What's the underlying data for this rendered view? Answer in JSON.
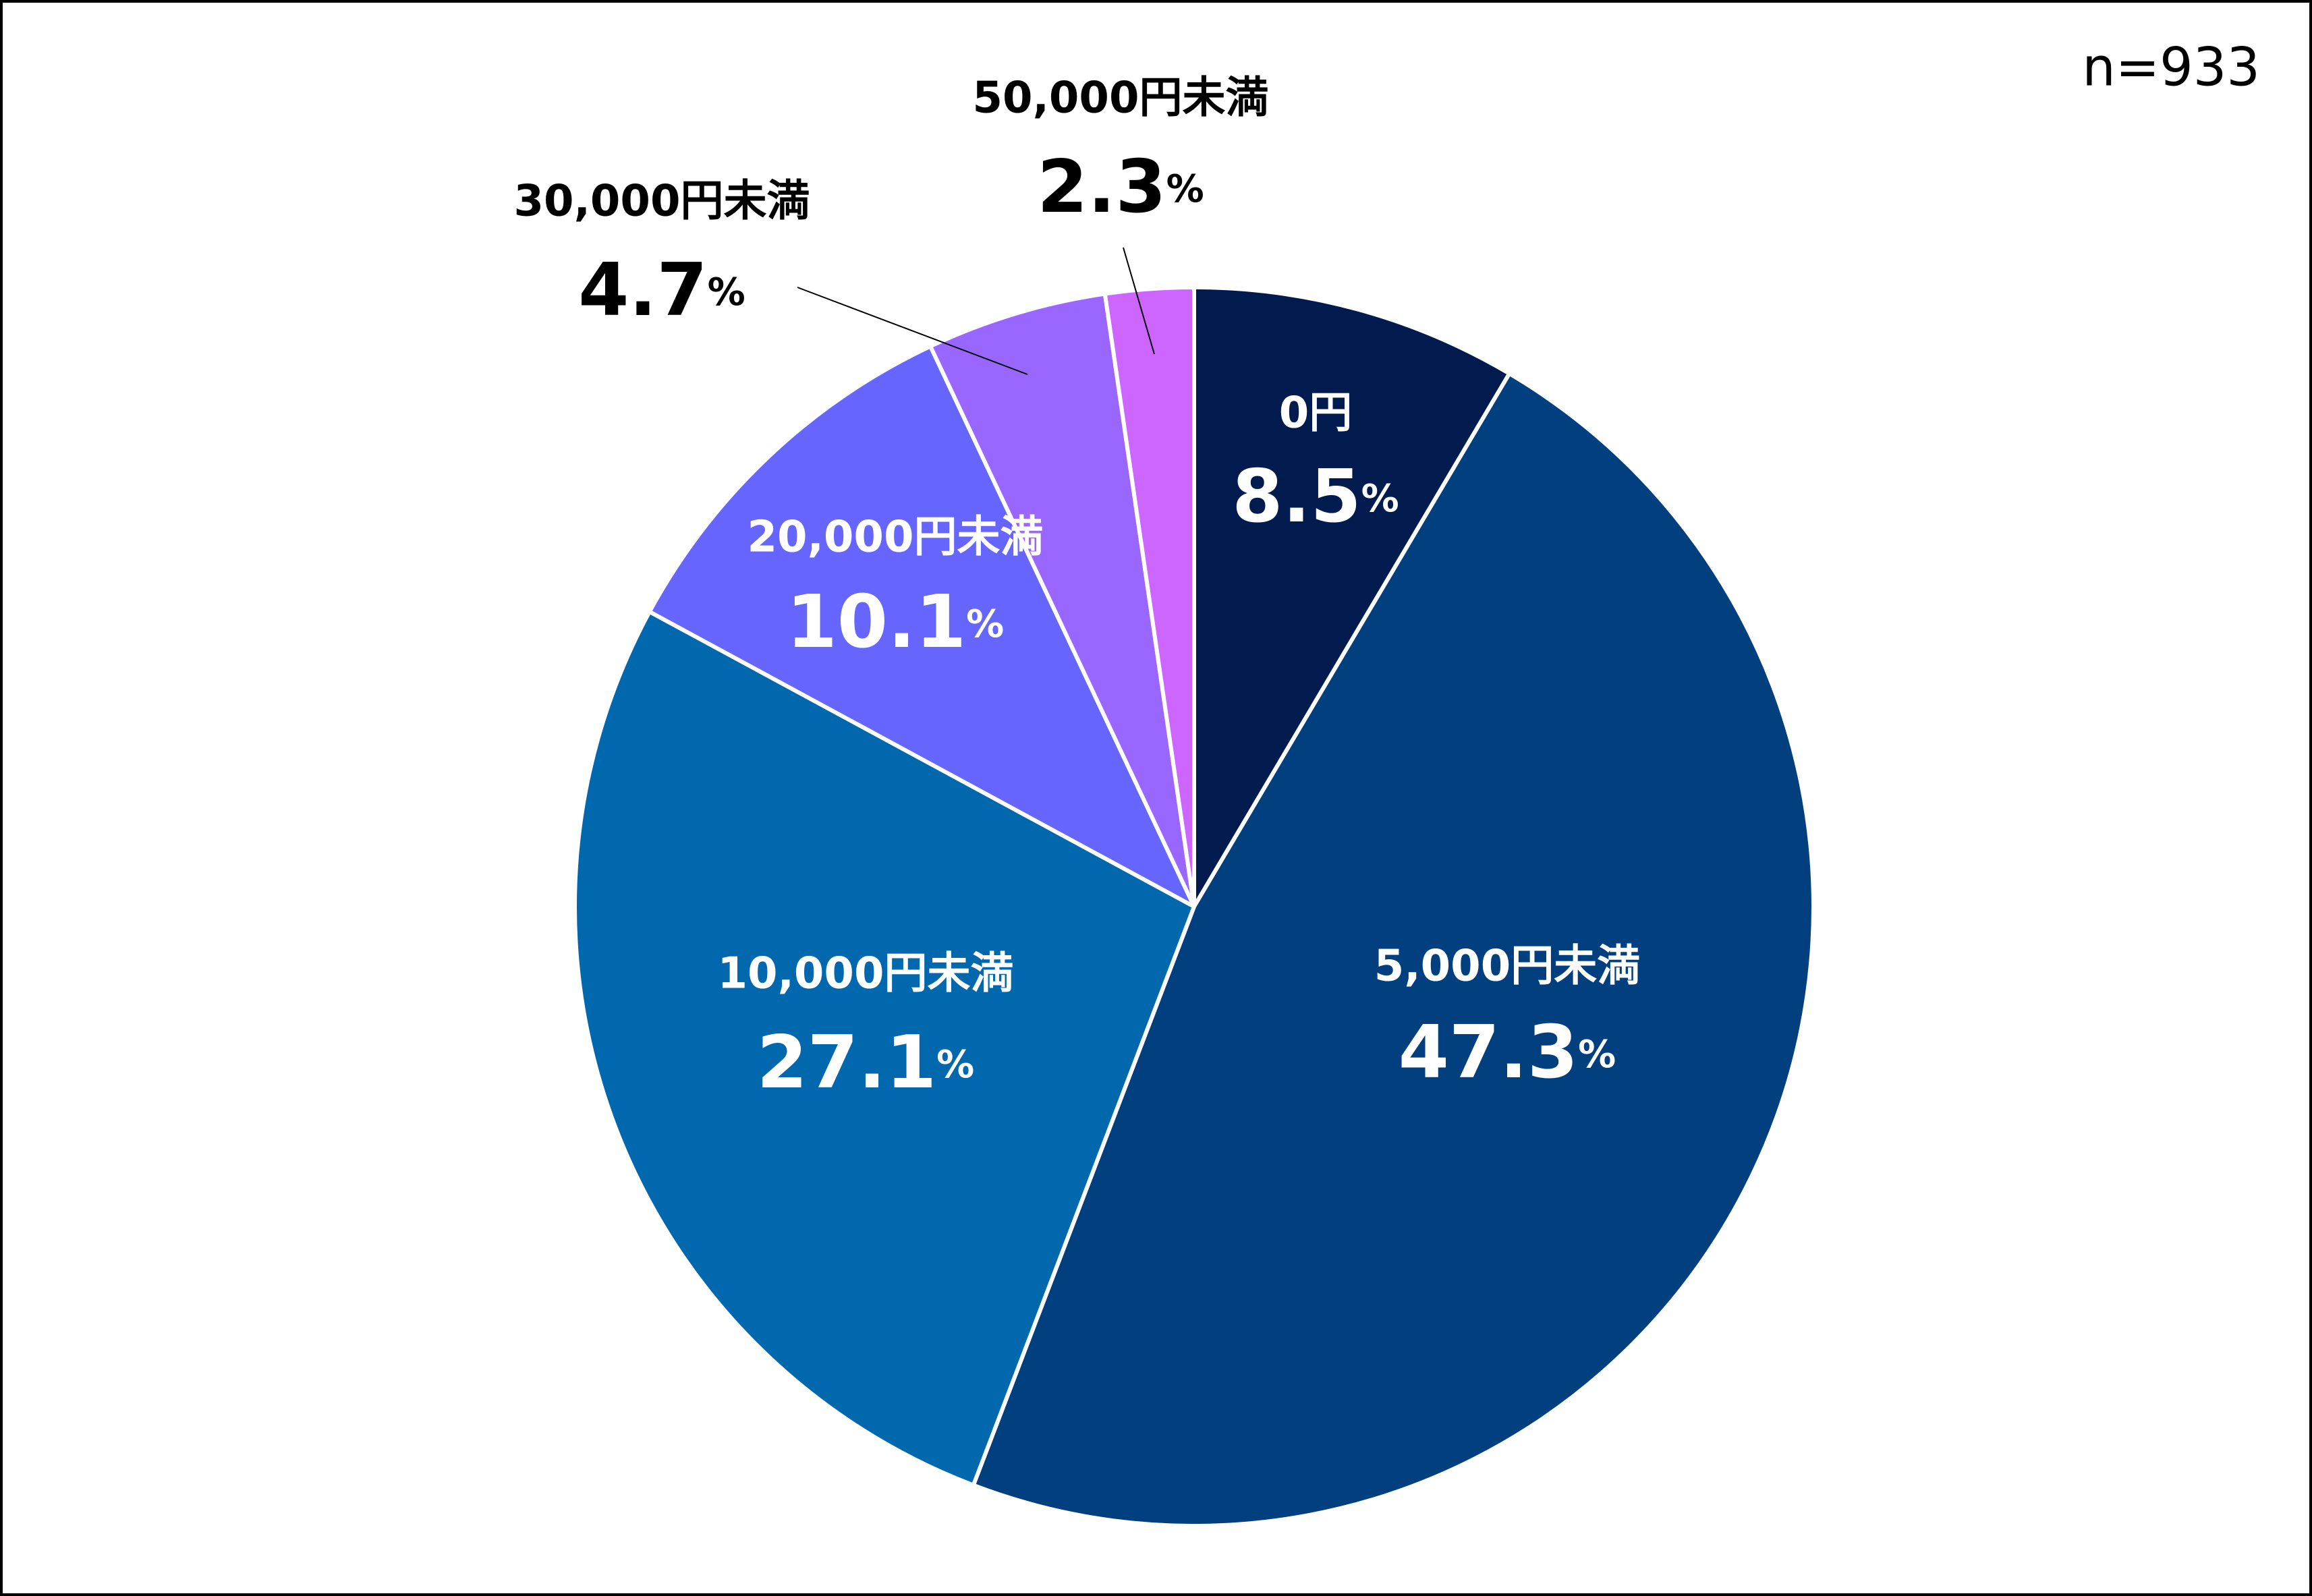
{
  "chart_data": {
    "type": "pie",
    "annotation": "n=933",
    "categories": [
      "0円",
      "5,000円未満",
      "10,000円未満",
      "20,000円未満",
      "30,000円未満",
      "50,000円未満"
    ],
    "values": [
      8.5,
      47.3,
      27.1,
      10.1,
      4.7,
      2.3
    ],
    "unit": "%",
    "colors": [
      "#021b4f",
      "#023f7f",
      "#0268ae",
      "#6666ff",
      "#9966ff",
      "#cc66ff"
    ]
  }
}
